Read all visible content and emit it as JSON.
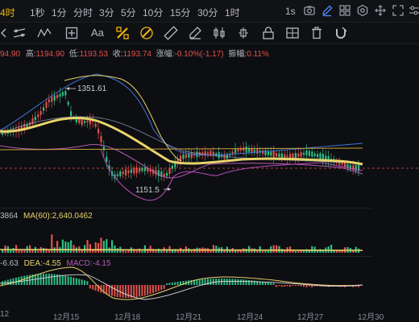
{
  "toolbar": {
    "timeframes": [
      {
        "label": "4时",
        "active": true
      },
      {
        "label": "1秒",
        "active": false
      },
      {
        "label": "1分",
        "active": false
      },
      {
        "label": "分时",
        "active": false
      },
      {
        "label": "3分",
        "active": false
      },
      {
        "label": "5分",
        "active": false
      },
      {
        "label": "10分",
        "active": false
      },
      {
        "label": "15分",
        "active": false
      },
      {
        "label": "30分",
        "active": false
      },
      {
        "label": "1时",
        "active": false
      }
    ],
    "settings_icons": [
      "camera-icon",
      "pencil-icon",
      "grid-icon",
      "gear-icon",
      "move-icon"
    ]
  },
  "drawbar": {
    "icons": [
      "chevron-left-icon",
      "parallel-lines-icon",
      "trend-icon",
      "crosshair-plus-icon",
      "text-icon",
      "brush-icon",
      "pattern-icon",
      "ruler-icon",
      "measure-icon",
      "pen-icon",
      "candles-icon",
      "bars-icon",
      "lock-icon",
      "delete-icon",
      "magnet-icon"
    ],
    "text_tool_label": "Aa",
    "interval_label": "1s"
  },
  "ohlc": {
    "open": "94.90",
    "high_label": "高:",
    "high": "1194.90",
    "low_label": "低:",
    "low": "1193.53",
    "close_label": "收:",
    "close": "1193.74",
    "change_label": "涨幅:",
    "change": "-0.10%(-1.17)",
    "amp_label": "振幅:",
    "amp": "0.11%"
  },
  "annotations": {
    "high_marker": "1351.61",
    "low_marker": "1151.5"
  },
  "volume": {
    "prefix": "3864",
    "ma_label": "MA(60):",
    "ma_value": "2,640.0462"
  },
  "macd": {
    "dif": "-6.63",
    "dea_label": "DEA:",
    "dea": "-4.55",
    "macd_label": "MACD:",
    "macd": "-4.15"
  },
  "xaxis": [
    "12",
    "12月15",
    "12月18",
    "12月21",
    "12月24",
    "12月27",
    "12月30"
  ],
  "colors": {
    "up": "#2ebd85",
    "down": "#e2524c",
    "accent": "#f0b90b",
    "ma_main": "#e8d36a",
    "band": "#8f6fcf"
  },
  "chart_data": {
    "type": "candlestick",
    "x": [
      "12",
      "12月15",
      "12月18",
      "12月21",
      "12月24",
      "12月27",
      "12月30"
    ],
    "price_high_marker": 1351.61,
    "price_low_marker": 1151.5,
    "last_close": 1193.74
  }
}
